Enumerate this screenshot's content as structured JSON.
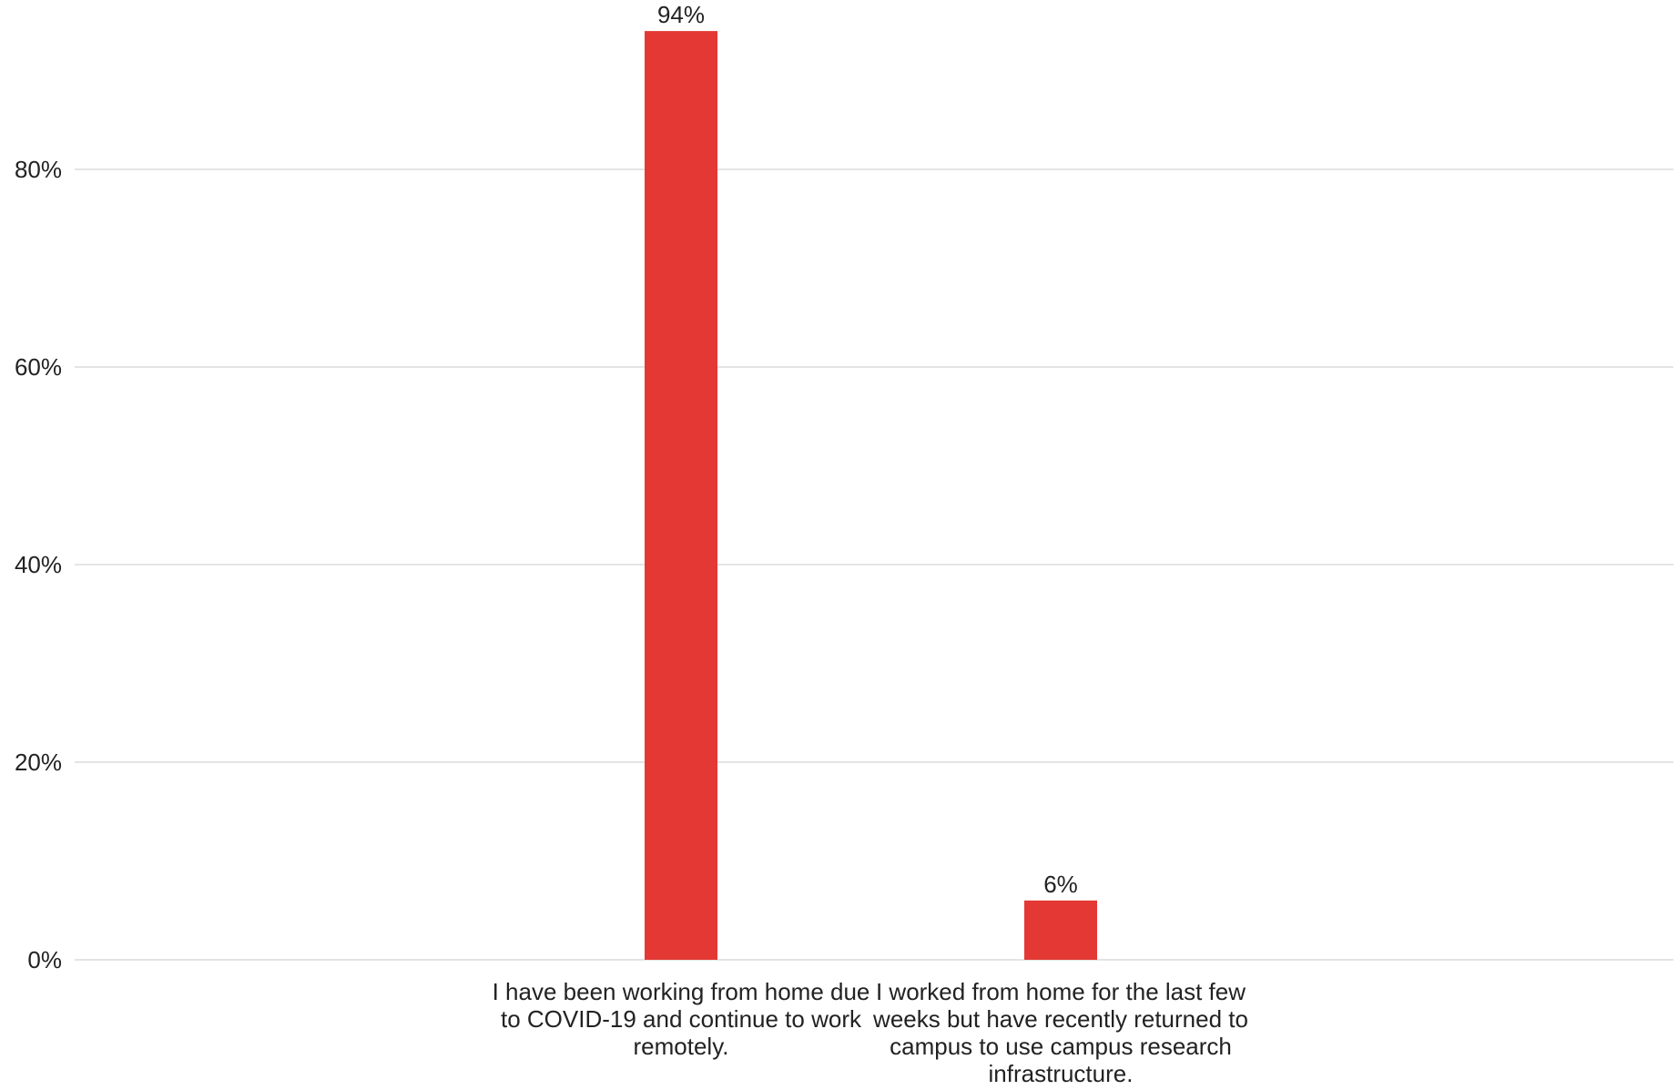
{
  "chart_data": {
    "type": "bar",
    "categories": [
      "I have been working from home due to COVID-19 and continue to work remotely.",
      "I worked from home for the last few weeks but have recently returned to campus to use campus research infrastructure."
    ],
    "values": [
      94,
      6
    ],
    "value_labels": [
      "94%",
      "6%"
    ],
    "title": "",
    "xlabel": "",
    "ylabel": "",
    "ylim": [
      0,
      100
    ],
    "yticks": [
      0,
      20,
      40,
      60,
      80
    ],
    "ytick_labels": [
      "0%",
      "20%",
      "40%",
      "60%",
      "80%"
    ],
    "grid": true,
    "legend": "none",
    "bar_color": "#e43834"
  }
}
